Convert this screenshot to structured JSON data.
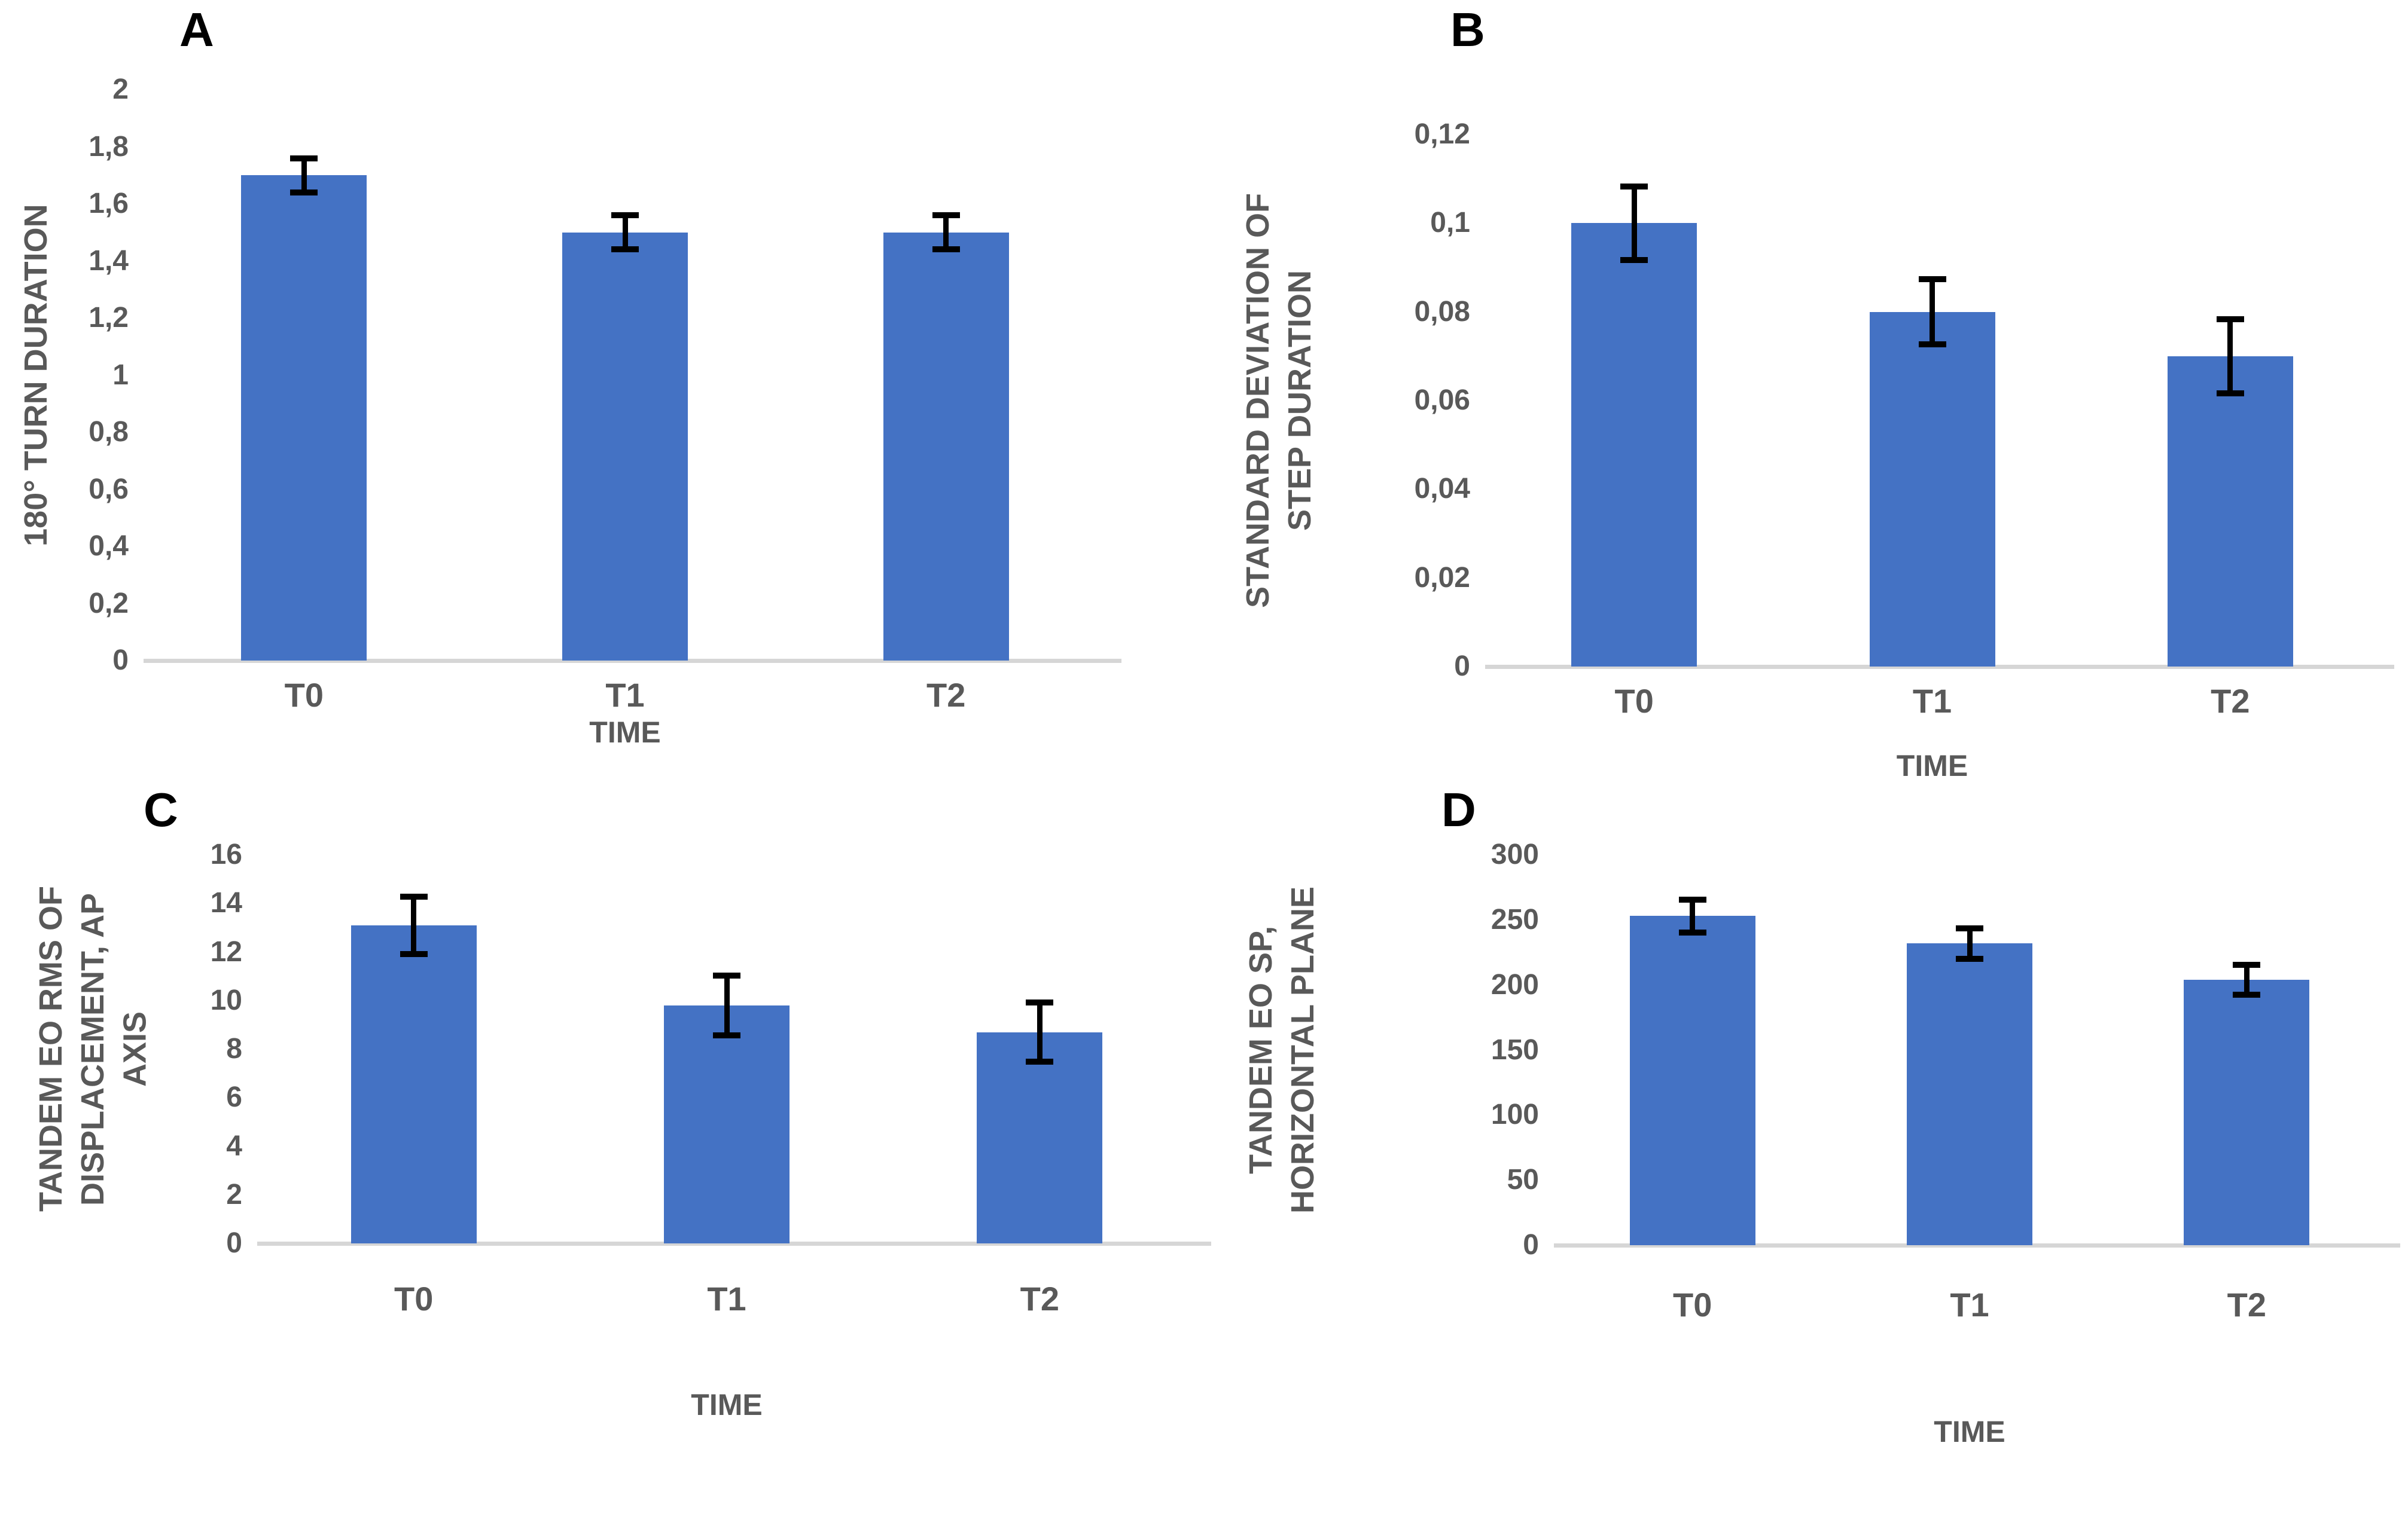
{
  "figure": {
    "background": "#FFFFFF",
    "colors": {
      "bar": "#4472C4",
      "error_bar": "#000000",
      "axis_line": "#D6D6D6",
      "axis_text": "#595959",
      "panel_letter": "#000000"
    }
  },
  "chart_data": [
    {
      "panel": "A",
      "type": "bar",
      "categories": [
        "T0",
        "T1",
        "T2"
      ],
      "values": [
        1.7,
        1.5,
        1.5
      ],
      "errors": [
        0.07,
        0.07,
        0.07
      ],
      "ylabel": "180° TURN DURATION",
      "xlabel": "TIME",
      "ylim": [
        0,
        2
      ],
      "ytick_labels": [
        "2",
        "1,8",
        "1,6",
        "1,4",
        "1,2",
        "1",
        "0,8",
        "0,6",
        "0,4",
        "0,2",
        "0"
      ],
      "ytick_values": [
        2,
        1.8,
        1.6,
        1.4,
        1.2,
        1,
        0.8,
        0.6,
        0.4,
        0.2,
        0
      ],
      "bar_color": "#4472C4",
      "error_color": "#000000",
      "grid": false,
      "legend": null
    },
    {
      "panel": "B",
      "type": "bar",
      "categories": [
        "T0",
        "T1",
        "T2"
      ],
      "values": [
        0.1,
        0.08,
        0.07
      ],
      "errors": [
        0.009,
        0.008,
        0.009
      ],
      "ylabel": "STANDARD DEVIATION OF\nSTEP DURATION",
      "xlabel": "TIME",
      "ylim": [
        0,
        0.12
      ],
      "ytick_labels": [
        "0,12",
        "0,1",
        "0,08",
        "0,06",
        "0,04",
        "0,02",
        "0"
      ],
      "ytick_values": [
        0.12,
        0.1,
        0.08,
        0.06,
        0.04,
        0.02,
        0
      ],
      "bar_color": "#4472C4",
      "error_color": "#000000",
      "grid": false,
      "legend": null
    },
    {
      "panel": "C",
      "type": "bar",
      "categories": [
        "T0",
        "T1",
        "T2"
      ],
      "values": [
        13.1,
        9.8,
        8.7
      ],
      "errors": [
        1.3,
        1.35,
        1.35
      ],
      "ylabel": "TANDEM EO RMS OF\nDISPLACEMENT, AP AXIS",
      "xlabel": "TIME",
      "ylim": [
        0,
        16
      ],
      "ytick_labels": [
        "16",
        "14",
        "12",
        "10",
        "8",
        "6",
        "4",
        "2",
        "0"
      ],
      "ytick_values": [
        16,
        14,
        12,
        10,
        8,
        6,
        4,
        2,
        0
      ],
      "bar_color": "#4472C4",
      "error_color": "#000000",
      "grid": false,
      "legend": null
    },
    {
      "panel": "D",
      "type": "bar",
      "categories": [
        "T0",
        "T1",
        "T2"
      ],
      "values": [
        253,
        232,
        204
      ],
      "errors": [
        15,
        14,
        14
      ],
      "ylabel": "TANDEM EO SP,\nHORIZONTAL PLANE",
      "xlabel": "TIME",
      "ylim": [
        0,
        300
      ],
      "ytick_labels": [
        "300",
        "250",
        "200",
        "150",
        "100",
        "50",
        "0"
      ],
      "ytick_values": [
        300,
        250,
        200,
        150,
        100,
        50,
        0
      ],
      "bar_color": "#4472C4",
      "error_color": "#000000",
      "grid": false,
      "legend": null
    }
  ]
}
